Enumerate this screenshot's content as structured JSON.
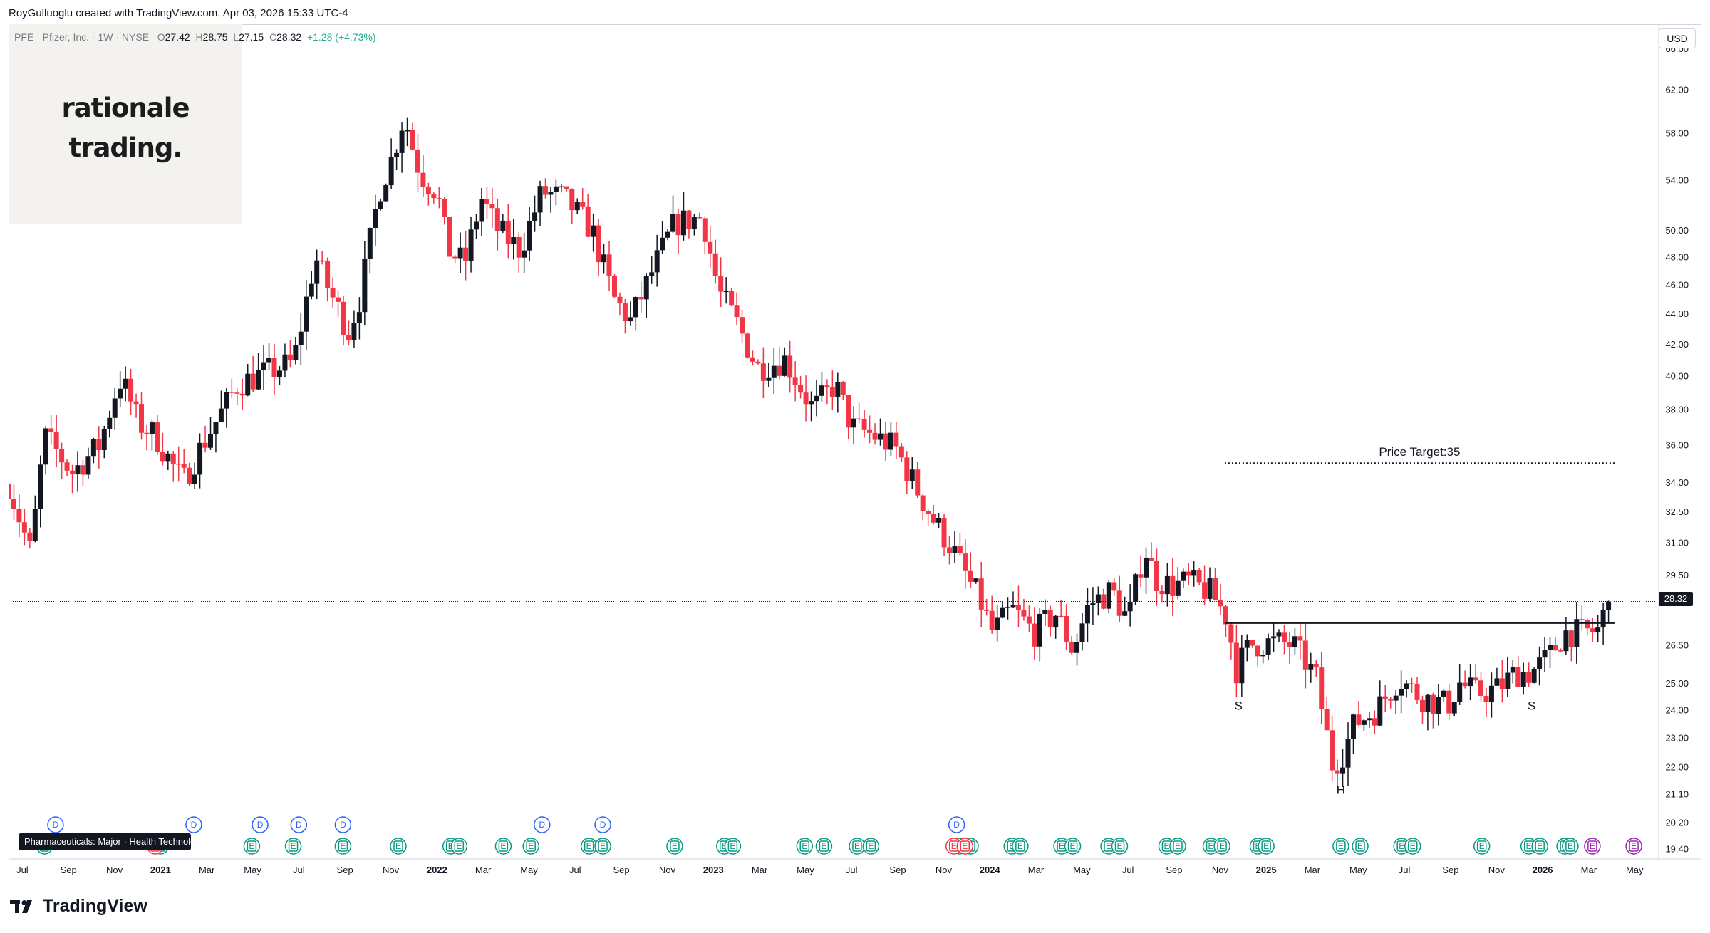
{
  "header": {
    "credit": "RoyGulluoglu created with TradingView.com, Apr 03, 2026 15:33 UTC-4"
  },
  "legend": {
    "symbol": "PFE · Pfizer, Inc. · 1W · NYSE",
    "open_label": "O",
    "open": "27.42",
    "high_label": "H",
    "high": "28.75",
    "low_label": "L",
    "low": "27.15",
    "close_label": "C",
    "close": "28.32",
    "change": "+1.28 (+4.73%)"
  },
  "watermark": {
    "line1": "rationale",
    "line2": "trading."
  },
  "currency": "USD",
  "last_price_tag": "28.32",
  "sector_tag": "Pharmaceuticals: Major · Health Technology",
  "annotations": {
    "price_target": "Price Target:35",
    "left_shoulder": "S",
    "head": "H",
    "right_shoulder": "S"
  },
  "footer": {
    "brand": "TradingView",
    "icon": "tradingview-logo-icon"
  },
  "colors": {
    "up": "#131722",
    "down": "#f23645",
    "background": "#ffffff",
    "grid_border": "#d1d4dc",
    "dividend": "#2962ff",
    "earnings": "#089981",
    "earnings_miss": "#f23645",
    "future": "#9c27b0"
  },
  "chart_data": {
    "type": "candlestick",
    "symbol": "PFE",
    "interval": "1W",
    "y_scale": "log",
    "ylim": [
      19.1,
      68.5
    ],
    "xlim": [
      2020.45,
      2026.42
    ],
    "y_ticks": [
      "66.00",
      "62.00",
      "58.00",
      "54.00",
      "50.00",
      "48.00",
      "46.00",
      "44.00",
      "42.00",
      "40.00",
      "38.00",
      "36.00",
      "34.00",
      "32.50",
      "31.00",
      "29.50",
      "26.50",
      "25.00",
      "24.00",
      "23.00",
      "22.00",
      "21.10",
      "20.20",
      "19.40"
    ],
    "x_ticks": [
      {
        "label": "Jul",
        "t": 2020.5
      },
      {
        "label": "Sep",
        "t": 2020.667
      },
      {
        "label": "Nov",
        "t": 2020.833
      },
      {
        "label": "2021",
        "t": 2021.0,
        "year": true
      },
      {
        "label": "Mar",
        "t": 2021.167
      },
      {
        "label": "May",
        "t": 2021.333
      },
      {
        "label": "Jul",
        "t": 2021.5
      },
      {
        "label": "Sep",
        "t": 2021.667
      },
      {
        "label": "Nov",
        "t": 2021.833
      },
      {
        "label": "2022",
        "t": 2022.0,
        "year": true
      },
      {
        "label": "Mar",
        "t": 2022.167
      },
      {
        "label": "May",
        "t": 2022.333
      },
      {
        "label": "Jul",
        "t": 2022.5
      },
      {
        "label": "Sep",
        "t": 2022.667
      },
      {
        "label": "Nov",
        "t": 2022.833
      },
      {
        "label": "2023",
        "t": 2023.0,
        "year": true
      },
      {
        "label": "Mar",
        "t": 2023.167
      },
      {
        "label": "May",
        "t": 2023.333
      },
      {
        "label": "Jul",
        "t": 2023.5
      },
      {
        "label": "Sep",
        "t": 2023.667
      },
      {
        "label": "Nov",
        "t": 2023.833
      },
      {
        "label": "2024",
        "t": 2024.0,
        "year": true
      },
      {
        "label": "Mar",
        "t": 2024.167
      },
      {
        "label": "May",
        "t": 2024.333
      },
      {
        "label": "Jul",
        "t": 2024.5
      },
      {
        "label": "Sep",
        "t": 2024.667
      },
      {
        "label": "Nov",
        "t": 2024.833
      },
      {
        "label": "2025",
        "t": 2025.0,
        "year": true
      },
      {
        "label": "Mar",
        "t": 2025.167
      },
      {
        "label": "May",
        "t": 2025.333
      },
      {
        "label": "Jul",
        "t": 2025.5
      },
      {
        "label": "Sep",
        "t": 2025.667
      },
      {
        "label": "Nov",
        "t": 2025.833
      },
      {
        "label": "2026",
        "t": 2026.0,
        "year": true
      },
      {
        "label": "Mar",
        "t": 2026.167
      },
      {
        "label": "May",
        "t": 2026.333
      }
    ],
    "anchors": [
      {
        "t": 2020.45,
        "p": 33.9
      },
      {
        "t": 2020.53,
        "p": 30.5
      },
      {
        "t": 2020.58,
        "p": 36.5
      },
      {
        "t": 2020.68,
        "p": 34.5
      },
      {
        "t": 2020.78,
        "p": 36.0
      },
      {
        "t": 2020.85,
        "p": 39.8
      },
      {
        "t": 2020.88,
        "p": 39.0
      },
      {
        "t": 2020.92,
        "p": 37.2
      },
      {
        "t": 2020.98,
        "p": 36.5
      },
      {
        "t": 2021.08,
        "p": 34.0
      },
      {
        "t": 2021.17,
        "p": 36.5
      },
      {
        "t": 2021.28,
        "p": 39.5
      },
      {
        "t": 2021.38,
        "p": 40.2
      },
      {
        "t": 2021.48,
        "p": 40.8
      },
      {
        "t": 2021.56,
        "p": 48.0
      },
      {
        "t": 2021.6,
        "p": 46.0
      },
      {
        "t": 2021.68,
        "p": 42.8
      },
      {
        "t": 2021.72,
        "p": 45.0
      },
      {
        "t": 2021.79,
        "p": 53.0
      },
      {
        "t": 2021.84,
        "p": 56.0
      },
      {
        "t": 2021.88,
        "p": 59.5
      },
      {
        "t": 2021.94,
        "p": 54.5
      },
      {
        "t": 2022.0,
        "p": 53.0
      },
      {
        "t": 2022.04,
        "p": 48.5
      },
      {
        "t": 2022.1,
        "p": 47.5
      },
      {
        "t": 2022.16,
        "p": 52.5
      },
      {
        "t": 2022.22,
        "p": 50.0
      },
      {
        "t": 2022.3,
        "p": 48.5
      },
      {
        "t": 2022.38,
        "p": 53.0
      },
      {
        "t": 2022.46,
        "p": 52.5
      },
      {
        "t": 2022.56,
        "p": 50.0
      },
      {
        "t": 2022.64,
        "p": 45.0
      },
      {
        "t": 2022.7,
        "p": 43.5
      },
      {
        "t": 2022.78,
        "p": 47.0
      },
      {
        "t": 2022.86,
        "p": 50.5
      },
      {
        "t": 2022.96,
        "p": 51.0
      },
      {
        "t": 2023.02,
        "p": 45.5
      },
      {
        "t": 2023.08,
        "p": 43.5
      },
      {
        "t": 2023.16,
        "p": 40.5
      },
      {
        "t": 2023.26,
        "p": 41.0
      },
      {
        "t": 2023.36,
        "p": 38.0
      },
      {
        "t": 2023.44,
        "p": 39.5
      },
      {
        "t": 2023.5,
        "p": 37.0
      },
      {
        "t": 2023.58,
        "p": 36.5
      },
      {
        "t": 2023.66,
        "p": 35.8
      },
      {
        "t": 2023.74,
        "p": 33.5
      },
      {
        "t": 2023.8,
        "p": 32.0
      },
      {
        "t": 2023.86,
        "p": 30.8
      },
      {
        "t": 2023.92,
        "p": 29.3
      },
      {
        "t": 2023.96,
        "p": 28.5
      },
      {
        "t": 2024.01,
        "p": 27.0
      },
      {
        "t": 2024.08,
        "p": 28.0
      },
      {
        "t": 2024.16,
        "p": 27.0
      },
      {
        "t": 2024.24,
        "p": 27.8
      },
      {
        "t": 2024.3,
        "p": 26.3
      },
      {
        "t": 2024.36,
        "p": 28.2
      },
      {
        "t": 2024.44,
        "p": 28.8
      },
      {
        "t": 2024.5,
        "p": 27.5
      },
      {
        "t": 2024.56,
        "p": 30.8
      },
      {
        "t": 2024.6,
        "p": 29.3
      },
      {
        "t": 2024.66,
        "p": 29.0
      },
      {
        "t": 2024.72,
        "p": 29.2
      },
      {
        "t": 2024.8,
        "p": 28.7
      },
      {
        "t": 2024.86,
        "p": 27.6
      },
      {
        "t": 2024.89,
        "p": 25.5
      },
      {
        "t": 2024.94,
        "p": 26.5
      },
      {
        "t": 2025.02,
        "p": 26.6
      },
      {
        "t": 2025.1,
        "p": 26.5
      },
      {
        "t": 2025.18,
        "p": 25.2
      },
      {
        "t": 2025.24,
        "p": 22.0
      },
      {
        "t": 2025.28,
        "p": 22.5
      },
      {
        "t": 2025.32,
        "p": 23.5
      },
      {
        "t": 2025.4,
        "p": 24.0
      },
      {
        "t": 2025.48,
        "p": 25.2
      },
      {
        "t": 2025.54,
        "p": 24.6
      },
      {
        "t": 2025.6,
        "p": 24.3
      },
      {
        "t": 2025.66,
        "p": 24.2
      },
      {
        "t": 2025.7,
        "p": 25.0
      },
      {
        "t": 2025.76,
        "p": 24.6
      },
      {
        "t": 2025.84,
        "p": 24.8
      },
      {
        "t": 2025.9,
        "p": 25.4
      },
      {
        "t": 2025.96,
        "p": 25.4
      },
      {
        "t": 2026.02,
        "p": 26.0
      },
      {
        "t": 2026.08,
        "p": 27.0
      },
      {
        "t": 2026.14,
        "p": 27.0
      },
      {
        "t": 2026.2,
        "p": 27.1
      },
      {
        "t": 2026.24,
        "p": 28.32
      }
    ],
    "neckline": {
      "t0": 2024.85,
      "t1": 2026.26,
      "price": 27.4
    },
    "price_target_line": {
      "t0": 2024.85,
      "t1": 2026.26,
      "price": 35.0
    },
    "last_price": 28.32,
    "shoulders": [
      {
        "label": "S",
        "t": 2024.9,
        "price": 24.0
      },
      {
        "label": "H",
        "t": 2025.27,
        "price": 21.1
      },
      {
        "label": "S",
        "t": 2025.96,
        "price": 24.0
      }
    ],
    "dividends": [
      2020.62,
      2021.12,
      2021.36,
      2021.5,
      2021.66,
      2022.38,
      2022.6,
      2023.88
    ],
    "earnings": [
      2020.58,
      2021.0,
      2021.33,
      2021.48,
      2021.66,
      2021.86,
      2022.05,
      2022.08,
      2022.24,
      2022.34,
      2022.55,
      2022.6,
      2022.86,
      2023.04,
      2023.07,
      2023.33,
      2023.4,
      2023.52,
      2023.57,
      2023.89,
      2023.93,
      2024.08,
      2024.11,
      2024.26,
      2024.3,
      2024.43,
      2024.47,
      2024.64,
      2024.68,
      2024.8,
      2024.84,
      2024.97,
      2025.0,
      2025.27,
      2025.34,
      2025.49,
      2025.53,
      2025.78,
      2025.95,
      2025.99,
      2026.08,
      2026.1
    ],
    "earnings_miss": [
      2020.98,
      2023.87,
      2023.91
    ],
    "future_events": [
      2026.18,
      2026.33
    ]
  }
}
